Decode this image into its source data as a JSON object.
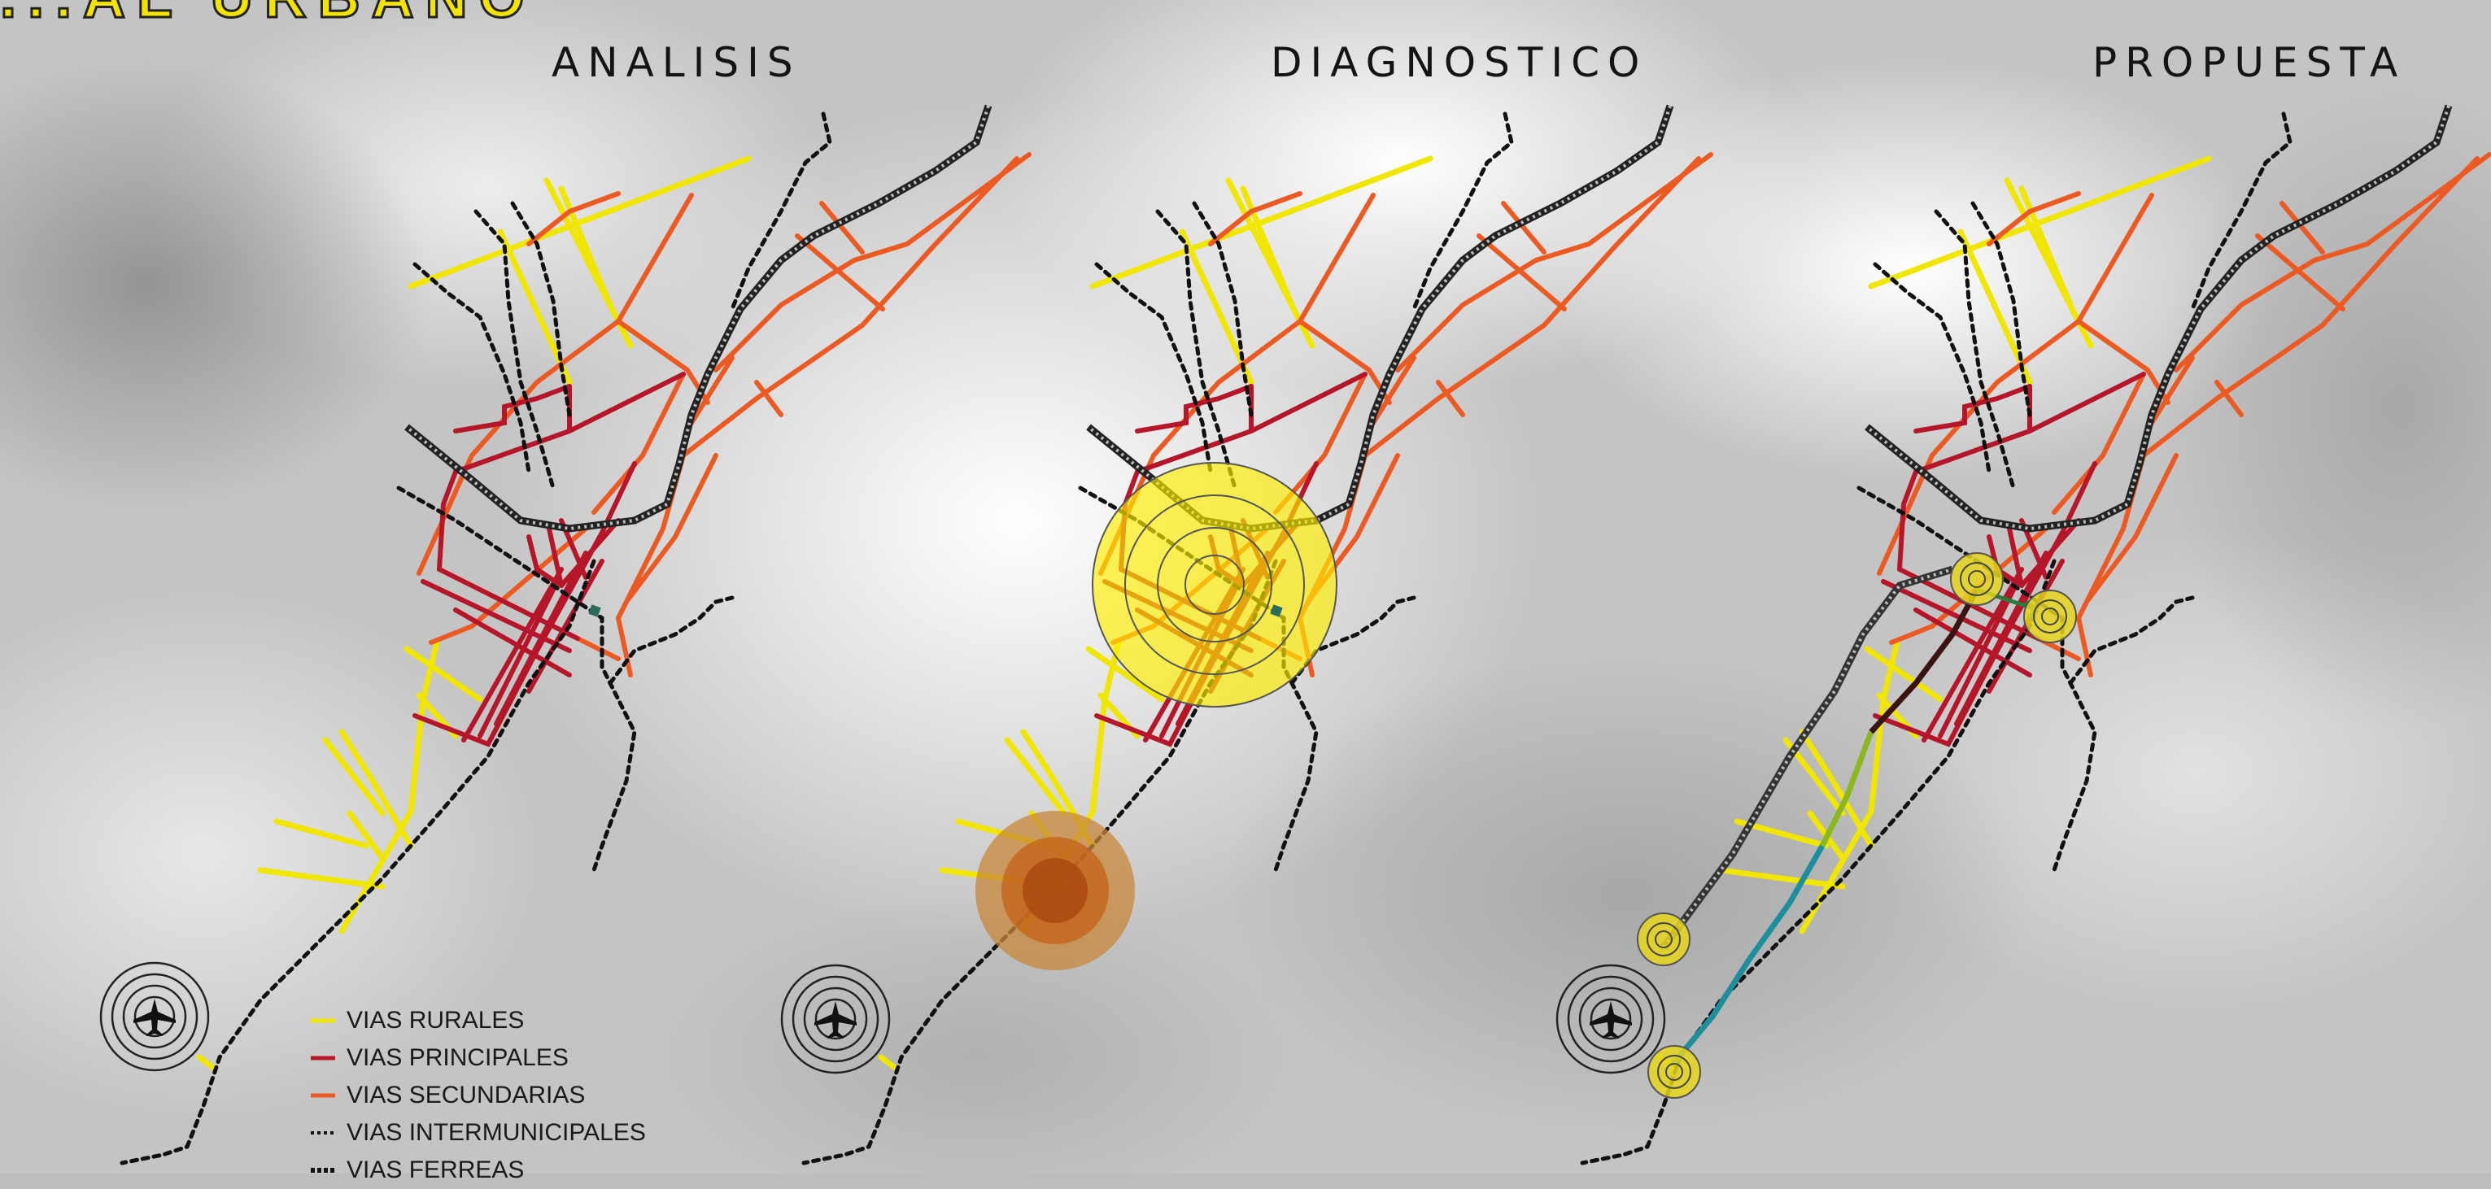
{
  "banner": "...AL URBANO",
  "panels": {
    "analisis": "ANALISIS",
    "diagnostico": "DIAGNOSTICO",
    "propuesta": "PROPUESTA"
  },
  "legend": [
    {
      "label": "VIAS RURALES",
      "color": "#f0e600",
      "style": "solid"
    },
    {
      "label": "VIAS PRINCIPALES",
      "color": "#b5162a",
      "style": "solid"
    },
    {
      "label": "VIAS SECUNDARIAS",
      "color": "#ec5a24",
      "style": "solid"
    },
    {
      "label": "VIAS INTERMUNICIPALES",
      "color": "#111111",
      "style": "dotted"
    },
    {
      "label": "VIAS FERREAS",
      "color": "#111111",
      "style": "rail"
    }
  ],
  "colors": {
    "rural": "#f0e600",
    "principal": "#b5162a",
    "secundaria": "#ec5a24",
    "intermunicipal": "#111111",
    "rail": "#333333",
    "hotspot_yellow": "#fff000",
    "hotspot_orange": "#c06a10",
    "node_yellow": "#e6d61c",
    "path_dark": "#3a1410",
    "path_green": "#8ab81e",
    "path_teal": "#1f8e9c"
  },
  "icons": [
    "airport-icon",
    "airport-icon",
    "airport-icon"
  ]
}
